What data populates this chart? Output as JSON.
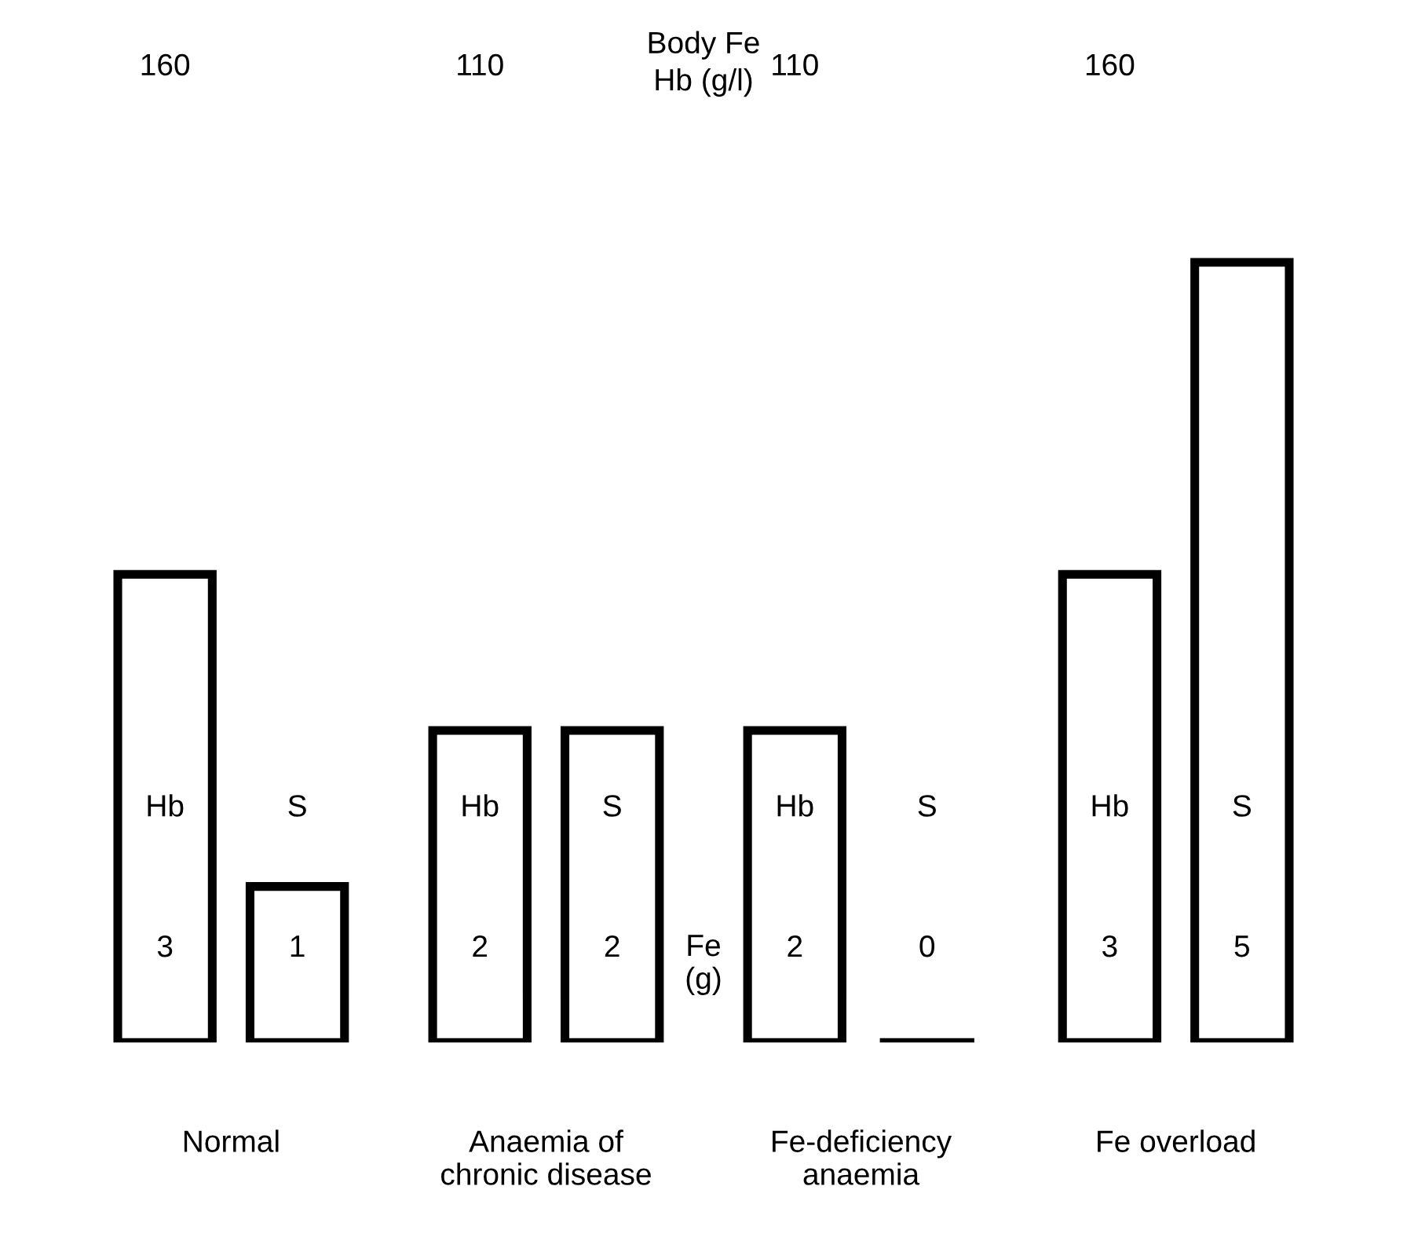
{
  "chart_data": {
    "type": "bar",
    "title": "Body Fe",
    "subtitle": "Hb (g/l)",
    "categories": [
      "Normal",
      "Anaemia of\nchronic disease",
      "Fe-deficiency\nanaemia",
      "Fe overload"
    ],
    "series": [
      {
        "name": "Hb",
        "color": "#000000",
        "values": [
          3,
          2,
          2,
          3
        ]
      },
      {
        "name": "S",
        "color": "#000000",
        "values": [
          1,
          2,
          0,
          5
        ]
      }
    ],
    "data_labels": true,
    "annotations": [
      "160",
      "110",
      "110",
      "160",
      "Fe\n(g)"
    ],
    "grid": false
  }
}
